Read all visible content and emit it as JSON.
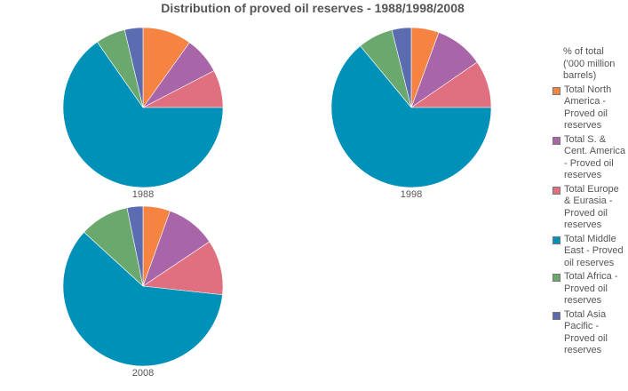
{
  "chart_data": {
    "type": "pie",
    "title": "Distribution of proved oil reserves - 1988/1998/2008",
    "legend_title": "% of total ('000 million barrels)",
    "categories": [
      "Total North America - Proved oil reserves",
      "Total S. & Cent. America - Proved oil reserves",
      "Total Europe & Eurasia - Proved oil reserves",
      "Total Middle East - Proved oil reserves",
      "Total Africa - Proved oil reserves",
      "Total Asia Pacific - Proved oil reserves"
    ],
    "colors": [
      "#f58342",
      "#a865a8",
      "#e0707f",
      "#0091b9",
      "#6aa86e",
      "#5b6db0"
    ],
    "series": [
      {
        "name": "1988",
        "values": [
          9.9,
          7.5,
          7.6,
          65.3,
          6.0,
          3.7
        ]
      },
      {
        "name": "1998",
        "values": [
          5.6,
          9.8,
          9.6,
          64.0,
          7.1,
          3.9
        ]
      },
      {
        "name": "2008",
        "values": [
          5.5,
          10.1,
          11.1,
          60.0,
          10.0,
          3.2
        ]
      }
    ]
  }
}
